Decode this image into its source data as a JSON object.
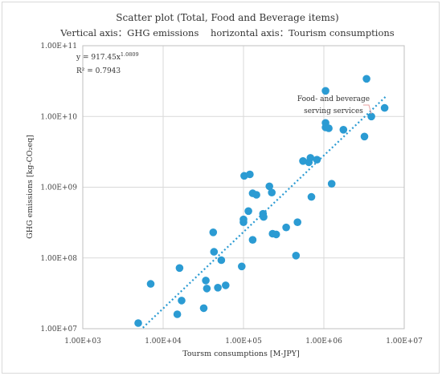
{
  "chart_data": {
    "type": "scatter",
    "title": "Scatter plot (Total, Food and Beverage items)",
    "subtitle": "Vertical axis：GHG emissions    horizontal axis：Tourism consumptions",
    "xlabel": "Toursm consumptions [M-JPY]",
    "ylabel": "GHG emissions [kg-CO₂eq]",
    "xscale": "log",
    "yscale": "log",
    "xlim": [
      1000,
      10000000
    ],
    "ylim": [
      10000000,
      100000000000
    ],
    "x_ticks": [
      "1.00E+03",
      "1.00E+04",
      "1.00E+05",
      "1.00E+06",
      "1.00E+07"
    ],
    "y_ticks": [
      "1.00E+07",
      "1.00E+08",
      "1.00E+09",
      "1.00E+10",
      "1.00E+11"
    ],
    "grid": true,
    "point_color": "#2b9bd3",
    "trend_color": "#2b9bd3",
    "equation": "y = 917.45x",
    "equation_exponent": "1.0809",
    "r_squared": "R² = 0.7943",
    "annotation": [
      "Food- and beverage",
      "serving services"
    ],
    "trendline": {
      "coef": 917.45,
      "exponent": 1.0809,
      "x_range": [
        5600,
        6000000
      ]
    },
    "points": [
      [
        4900,
        12000000
      ],
      [
        7000,
        43000000
      ],
      [
        15000,
        16000000
      ],
      [
        16000,
        72000000
      ],
      [
        17000,
        25000000
      ],
      [
        32000,
        19500000
      ],
      [
        34000,
        48000000
      ],
      [
        35000,
        37000000
      ],
      [
        42000,
        230000000
      ],
      [
        43000,
        122000000
      ],
      [
        48000,
        38000000
      ],
      [
        53000,
        93000000
      ],
      [
        60000,
        41000000
      ],
      [
        95000,
        76000000
      ],
      [
        100000,
        350000000
      ],
      [
        100000,
        320000000
      ],
      [
        102000,
        1450000000
      ],
      [
        115000,
        460000000
      ],
      [
        120000,
        1520000000
      ],
      [
        130000,
        820000000
      ],
      [
        130000,
        180000000
      ],
      [
        145000,
        780000000
      ],
      [
        175000,
        420000000
      ],
      [
        178000,
        380000000
      ],
      [
        210000,
        1030000000
      ],
      [
        225000,
        840000000
      ],
      [
        230000,
        220000000
      ],
      [
        255000,
        215000000
      ],
      [
        340000,
        270000000
      ],
      [
        450000,
        108000000
      ],
      [
        470000,
        320000000
      ],
      [
        550000,
        2350000000
      ],
      [
        650000,
        2250000000
      ],
      [
        680000,
        2600000000
      ],
      [
        700000,
        730000000
      ],
      [
        820000,
        2450000000
      ],
      [
        1050000,
        23000000000
      ],
      [
        1050000,
        8100000000
      ],
      [
        1050000,
        7000000000
      ],
      [
        1150000,
        6800000000
      ],
      [
        1250000,
        1120000000
      ],
      [
        1750000,
        6500000000
      ],
      [
        3200000,
        5200000000
      ],
      [
        3400000,
        34000000000
      ],
      [
        3900000,
        10000000000
      ],
      [
        5700000,
        13200000000
      ]
    ]
  }
}
